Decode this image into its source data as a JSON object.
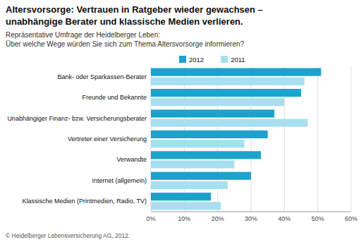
{
  "chart_data": {
    "type": "bar",
    "orientation": "horizontal",
    "title": [
      "Altersvorsorge: Vertrauen in Ratgeber wieder gewachsen –",
      "unabhängige Berater und klassische Medien verlieren."
    ],
    "subtitle": [
      "Repräsentative Umfrage der Heidelberger Leben:",
      "Über welche Wege würden Sie sich zum Thema Altersvorsorge informieren?"
    ],
    "footnote": "© Heidelberger Lebensversicherung AG, 2012.",
    "categories": [
      "Bank- oder Sparkassen-Berater",
      "Freunde und Bekannte",
      "Unabhängiger Finanz- bzw. Versicherungsberater",
      "Vertreter einer Versicherung",
      "Verwandte",
      "Internet (allgemein)",
      "Klassische Medien (Printmedien, Radio, TV)"
    ],
    "series": [
      {
        "name": "2012",
        "color": "#1BA3CC",
        "values": [
          51,
          45,
          37,
          35,
          33,
          30,
          18
        ]
      },
      {
        "name": "2011",
        "color": "#A8DFF0",
        "values": [
          46,
          40,
          47,
          28,
          25,
          23,
          21
        ]
      }
    ],
    "xlim": [
      0,
      60
    ],
    "xticks": [
      {
        "value": 0,
        "label": "0%"
      },
      {
        "value": 10,
        "label": "10%"
      },
      {
        "value": 20,
        "label": "20%"
      },
      {
        "value": 30,
        "label": "30%"
      },
      {
        "value": 40,
        "label": "40%"
      },
      {
        "value": 50,
        "label": "50%"
      },
      {
        "value": 60,
        "label": "60%"
      }
    ],
    "grid": true,
    "legend": "top"
  }
}
